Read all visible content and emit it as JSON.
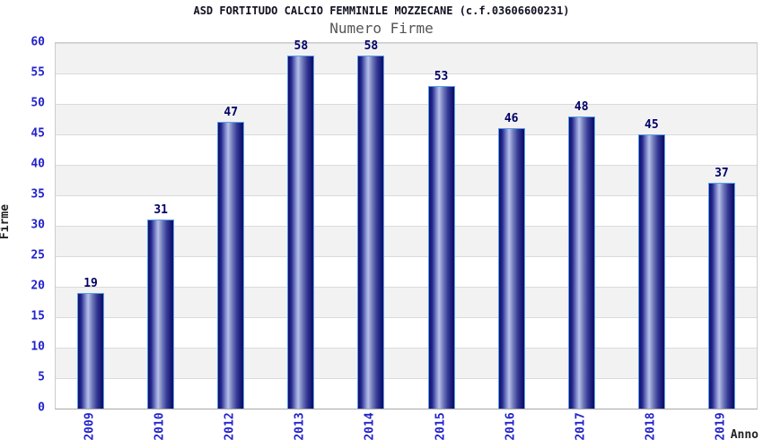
{
  "chart_data": {
    "type": "bar",
    "title": "ASD FORTITUDO CALCIO FEMMINILE MOZZECANE (c.f.03606600231)",
    "subtitle": "Numero Firme",
    "xlabel": "Anno",
    "ylabel": "Firme",
    "categories": [
      "2009",
      "2010",
      "2012",
      "2013",
      "2014",
      "2015",
      "2016",
      "2017",
      "2018",
      "2019"
    ],
    "values": [
      19,
      31,
      47,
      58,
      58,
      53,
      46,
      48,
      45,
      37
    ],
    "ylim": [
      0,
      60
    ],
    "yticks": [
      0,
      5,
      10,
      15,
      20,
      25,
      30,
      35,
      40,
      45,
      50,
      55,
      60
    ],
    "grid": true,
    "legend": "none",
    "colors": {
      "bar_dark": "#10106a",
      "bar_highlight": "#b7bfe8",
      "bar_border": "#56a0ec",
      "axis_tick_label": "#2222cc",
      "value_label": "#000066",
      "band_fill": "#f2f2f2",
      "gridline": "#dadada",
      "title": "#111122",
      "subtitle": "#555555",
      "axis_title": "#222222",
      "background": "#ffffff"
    }
  }
}
